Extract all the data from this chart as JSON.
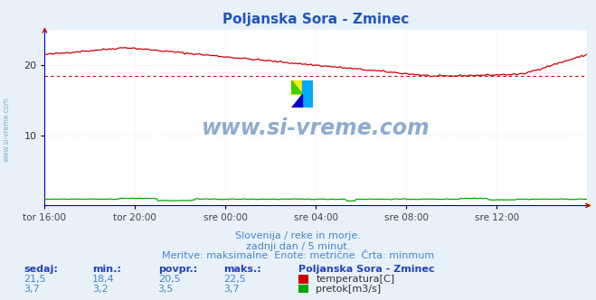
{
  "title": "Poljanska Sora - Zminec",
  "title_color": "#2255bb",
  "bg_color": "#e8f0f8",
  "plot_bg_color": "#ffffff",
  "grid_color": "#ffcccc",
  "xlabel_ticks": [
    "tor 16:00",
    "tor 20:00",
    "sre 00:00",
    "sre 04:00",
    "sre 08:00",
    "sre 12:00"
  ],
  "yticks": [
    10,
    20
  ],
  "ylim": [
    0,
    25
  ],
  "xlim": [
    0,
    1
  ],
  "temp_min": 18.4,
  "temp_max": 22.5,
  "temp_avg": 20.5,
  "temp_current": 21.5,
  "flow_min": 3.2,
  "flow_max": 3.7,
  "flow_avg": 3.5,
  "flow_current": 3.7,
  "temp_color": "#cc0000",
  "flow_color": "#00aa00",
  "axis_color": "#0000cc",
  "watermark_text": "www.si-vreme.com",
  "watermark_color": "#3366aa",
  "sub_text1": "Slovenija / reke in morje.",
  "sub_text2": "zadnji dan / 5 minut.",
  "sub_text3": "Meritve: maksimalne  Enote: metrične  Črta: minmum",
  "sub_text_color": "#4488cc",
  "table_headers": [
    "sedaj:",
    "min.:",
    "povpr.:",
    "maks.:"
  ],
  "table_label_color": "#2244bb",
  "table_value_color": "#4488cc",
  "legend_title": "Poljanska Sora - Zminec",
  "legend_items": [
    "temperatura[C]",
    "pretok[m3/s]"
  ],
  "legend_colors": [
    "#cc0000",
    "#00aa00"
  ],
  "side_label": "www.si-vreme.com",
  "side_label_color": "#5599bb"
}
